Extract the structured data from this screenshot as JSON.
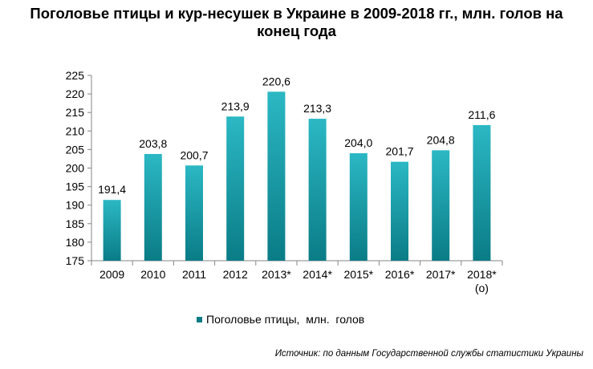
{
  "chart_data": {
    "type": "bar",
    "title_line1": "Поголовье птицы и кур-несушек в Украине в 2009-2018 гг., млн. голов на",
    "title_line2": "конец года",
    "categories": [
      "2009",
      "2010",
      "2011",
      "2012",
      "2013*",
      "2014*",
      "2015*",
      "2016*",
      "2017*",
      "2018*"
    ],
    "category_sublabels": [
      "",
      "",
      "",
      "",
      "",
      "",
      "",
      "",
      "",
      "(о)"
    ],
    "series": [
      {
        "name": "Поголовье птицы,  млн.  голов",
        "values": [
          191.4,
          203.8,
          200.7,
          213.9,
          220.6,
          213.3,
          204.0,
          201.7,
          204.8,
          211.6
        ],
        "labels": [
          "191,4",
          "203,8",
          "200,7",
          "213,9",
          "220,6",
          "213,3",
          "204,0",
          "201,7",
          "204,8",
          "211,6"
        ]
      }
    ],
    "ylim": [
      175,
      225
    ],
    "yticks": [
      175,
      180,
      185,
      190,
      195,
      200,
      205,
      210,
      215,
      220,
      225
    ],
    "legend_position": "bottom",
    "bar_color_top": "#2bb8c4",
    "bar_color_bottom": "#0a7c86",
    "source": "Источник: по данным Государственной службы статистики Украины"
  }
}
